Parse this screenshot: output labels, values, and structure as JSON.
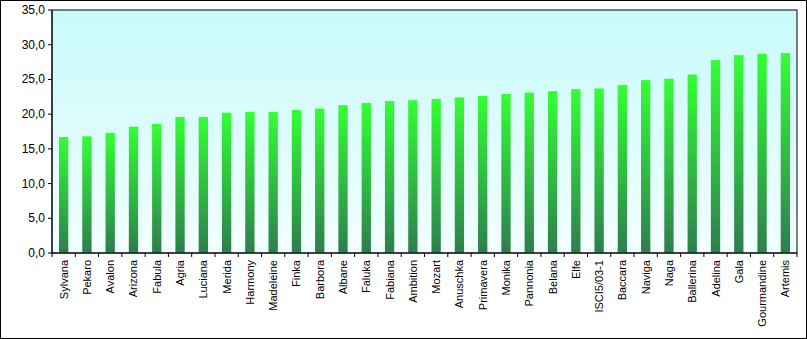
{
  "chart_data": {
    "type": "bar",
    "categories": [
      "Sylvana",
      "Pekaro",
      "Avalon",
      "Arizona",
      "Fabula",
      "Agria",
      "Luciana",
      "Merida",
      "Harmony",
      "Madeleine",
      "Finka",
      "Barbora",
      "Albane",
      "Faluka",
      "Fabiana",
      "Ambition",
      "Mozart",
      "Anuschka",
      "Primavera",
      "Monika",
      "Pannonia",
      "Belana",
      "Elfe",
      "ISCI5/03-1",
      "Baccara",
      "Naviga",
      "Naga",
      "Ballerina",
      "Adelina",
      "Gala",
      "Gourmandine",
      "Artemis"
    ],
    "values": [
      16.7,
      16.8,
      17.3,
      18.2,
      18.6,
      19.6,
      19.6,
      20.2,
      20.3,
      20.3,
      20.6,
      20.8,
      21.3,
      21.6,
      21.9,
      22.0,
      22.2,
      22.4,
      22.6,
      22.9,
      23.1,
      23.3,
      23.6,
      23.7,
      24.2,
      24.9,
      25.1,
      25.7,
      27.8,
      28.5,
      28.7,
      28.8
    ],
    "color": "#33ff33",
    "ylim": [
      0,
      35
    ],
    "yticks": [
      {
        "value": 0,
        "label": "0,0"
      },
      {
        "value": 5,
        "label": "5,0"
      },
      {
        "value": 10,
        "label": "10,0"
      },
      {
        "value": 15,
        "label": "15,0"
      },
      {
        "value": 20,
        "label": "20,0"
      },
      {
        "value": 25,
        "label": "25,0"
      },
      {
        "value": 30,
        "label": "30,0"
      },
      {
        "value": 35,
        "label": "35,0"
      }
    ],
    "grid": false
  }
}
